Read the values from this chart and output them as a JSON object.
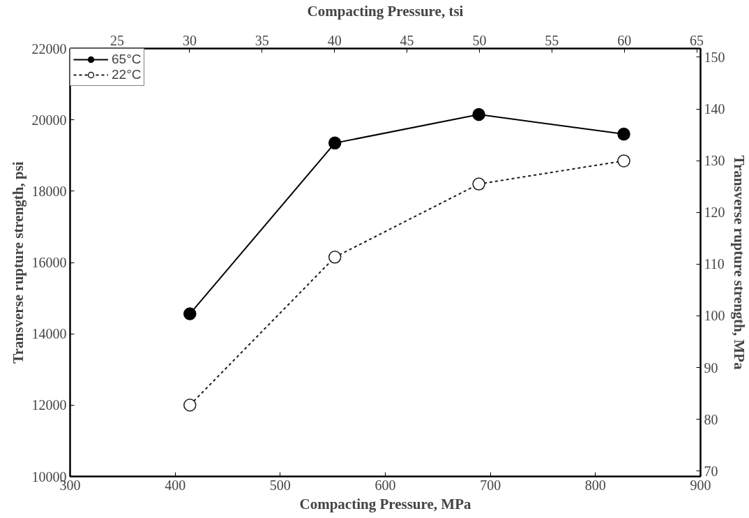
{
  "chart_data": {
    "type": "line",
    "xlabel": "Compacting Pressure, MPa",
    "x2label": "Compacting Pressure, tsi",
    "ylabel": "Transverse rupture strength, psi",
    "y2label": "Transverse rupture strength, MPa",
    "xlim": [
      300,
      900
    ],
    "xticks": [
      300,
      400,
      500,
      600,
      700,
      800,
      900
    ],
    "x2lim": [
      21.75,
      65.26
    ],
    "x2ticks": [
      25,
      30,
      35,
      40,
      45,
      50,
      55,
      60,
      65
    ],
    "ylim": [
      10000,
      22000
    ],
    "yticks": [
      10000,
      12000,
      14000,
      16000,
      18000,
      20000,
      22000
    ],
    "y2lim": [
      68.95,
      151.68
    ],
    "y2ticks": [
      70,
      80,
      90,
      100,
      110,
      120,
      130,
      140,
      150
    ],
    "x": [
      414,
      552,
      689,
      827
    ],
    "series": [
      {
        "name": "65°C",
        "color": "#000000",
        "line_style": "solid",
        "values": [
          14560,
          19350,
          20150,
          19600
        ]
      },
      {
        "name": "22°C",
        "color": "#1a1a1a",
        "line_style": "dotted",
        "values": [
          12000,
          16150,
          18200,
          18850
        ]
      }
    ],
    "marker": "circle",
    "grid": false,
    "legend": "top left"
  }
}
